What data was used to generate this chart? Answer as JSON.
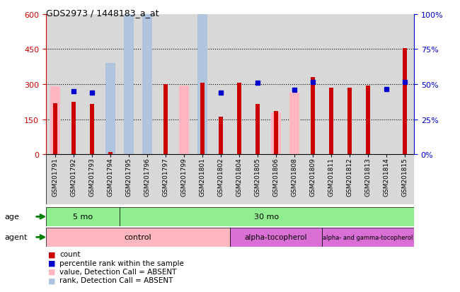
{
  "title": "GDS2973 / 1448183_a_at",
  "samples": [
    "GSM201791",
    "GSM201792",
    "GSM201793",
    "GSM201794",
    "GSM201795",
    "GSM201796",
    "GSM201797",
    "GSM201799",
    "GSM201801",
    "GSM201802",
    "GSM201804",
    "GSM201805",
    "GSM201806",
    "GSM201808",
    "GSM201809",
    "GSM201811",
    "GSM201812",
    "GSM201813",
    "GSM201814",
    "GSM201815"
  ],
  "count_values": [
    220,
    225,
    215,
    10,
    0,
    0,
    300,
    0,
    305,
    160,
    305,
    215,
    185,
    0,
    330,
    285,
    285,
    295,
    0,
    455
  ],
  "rank_values": [
    null,
    270,
    265,
    null,
    null,
    null,
    null,
    null,
    null,
    265,
    null,
    305,
    null,
    275,
    310,
    null,
    null,
    null,
    280,
    310
  ],
  "absent_value": [
    290,
    null,
    null,
    5,
    135,
    145,
    null,
    295,
    null,
    null,
    null,
    null,
    180,
    265,
    null,
    null,
    null,
    null,
    null,
    null
  ],
  "absent_rank": [
    null,
    null,
    null,
    65,
    155,
    165,
    null,
    null,
    245,
    null,
    null,
    null,
    null,
    null,
    null,
    null,
    null,
    null,
    null,
    null
  ],
  "ylim_left": [
    0,
    600
  ],
  "ylim_right": [
    0,
    100
  ],
  "yticks_left": [
    0,
    150,
    300,
    450,
    600
  ],
  "yticks_right": [
    0,
    25,
    50,
    75,
    100
  ],
  "age_5mo_count": 4,
  "age_30mo_count": 16,
  "control_count": 10,
  "alpha_toco_count": 5,
  "alpha_gamma_toco_count": 5,
  "age_color": "#90ee90",
  "agent_color_control": "#ffb6c1",
  "agent_color_alpha": "#da70d6",
  "agent_color_alpha_gamma": "#da70d6",
  "bar_color_count": "#cc0000",
  "bar_color_rank": "#0000cc",
  "bar_color_absent_value": "#ffb6c1",
  "bar_color_absent_rank": "#b0c4de",
  "plot_bg": "#d8d8d8",
  "left_axis_color": "#cc0000",
  "right_axis_color": "#0000cc"
}
